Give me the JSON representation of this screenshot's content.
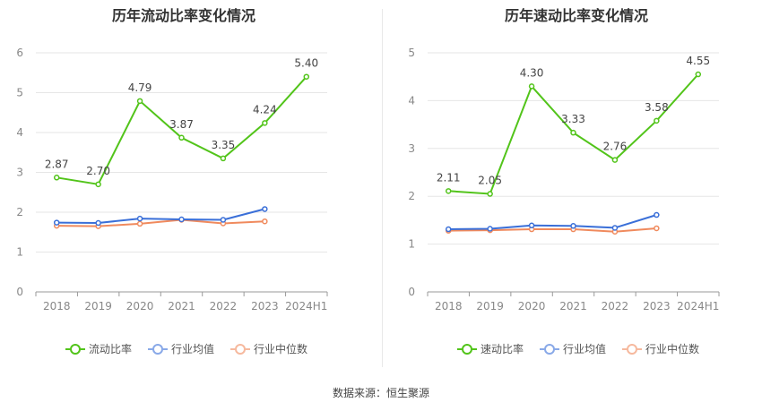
{
  "chart_data": [
    {
      "type": "line",
      "title": "历年流动比率变化情况",
      "categories": [
        "2018",
        "2019",
        "2020",
        "2021",
        "2022",
        "2023",
        "2024H1"
      ],
      "ylim": [
        0,
        6
      ],
      "yticks": [
        "0",
        "1",
        "2",
        "3",
        "4",
        "5",
        "6"
      ],
      "grid": true,
      "legend_position": "bottom",
      "series": [
        {
          "name": "流动比率",
          "color": "#52c41a",
          "values": [
            2.87,
            2.7,
            4.79,
            3.87,
            3.35,
            4.24,
            5.4
          ],
          "labels": [
            "2.87",
            "2.70",
            "4.79",
            "3.87",
            "3.35",
            "4.24",
            "5.40"
          ]
        },
        {
          "name": "行业均值",
          "color": "#3a6fd8",
          "values": [
            1.74,
            1.73,
            1.84,
            1.82,
            1.81,
            2.08,
            null
          ]
        },
        {
          "name": "行业中位数",
          "color": "#f08a5d",
          "values": [
            1.66,
            1.65,
            1.71,
            1.81,
            1.72,
            1.77,
            null
          ]
        }
      ]
    },
    {
      "type": "line",
      "title": "历年速动比率变化情况",
      "categories": [
        "2018",
        "2019",
        "2020",
        "2021",
        "2022",
        "2023",
        "2024H1"
      ],
      "ylim": [
        0,
        5
      ],
      "yticks": [
        "0",
        "1",
        "2",
        "3",
        "4",
        "5"
      ],
      "grid": true,
      "legend_position": "bottom",
      "series": [
        {
          "name": "速动比率",
          "color": "#52c41a",
          "values": [
            2.11,
            2.05,
            4.3,
            3.33,
            2.76,
            3.58,
            4.55
          ],
          "labels": [
            "2.11",
            "2.05",
            "4.30",
            "3.33",
            "2.76",
            "3.58",
            "4.55"
          ]
        },
        {
          "name": "行业均值",
          "color": "#3a6fd8",
          "values": [
            1.31,
            1.32,
            1.39,
            1.38,
            1.34,
            1.61,
            null
          ]
        },
        {
          "name": "行业中位数",
          "color": "#f08a5d",
          "values": [
            1.28,
            1.29,
            1.31,
            1.31,
            1.26,
            1.33,
            null
          ]
        }
      ]
    }
  ],
  "footer": {
    "source": "数据来源：恒生聚源"
  }
}
